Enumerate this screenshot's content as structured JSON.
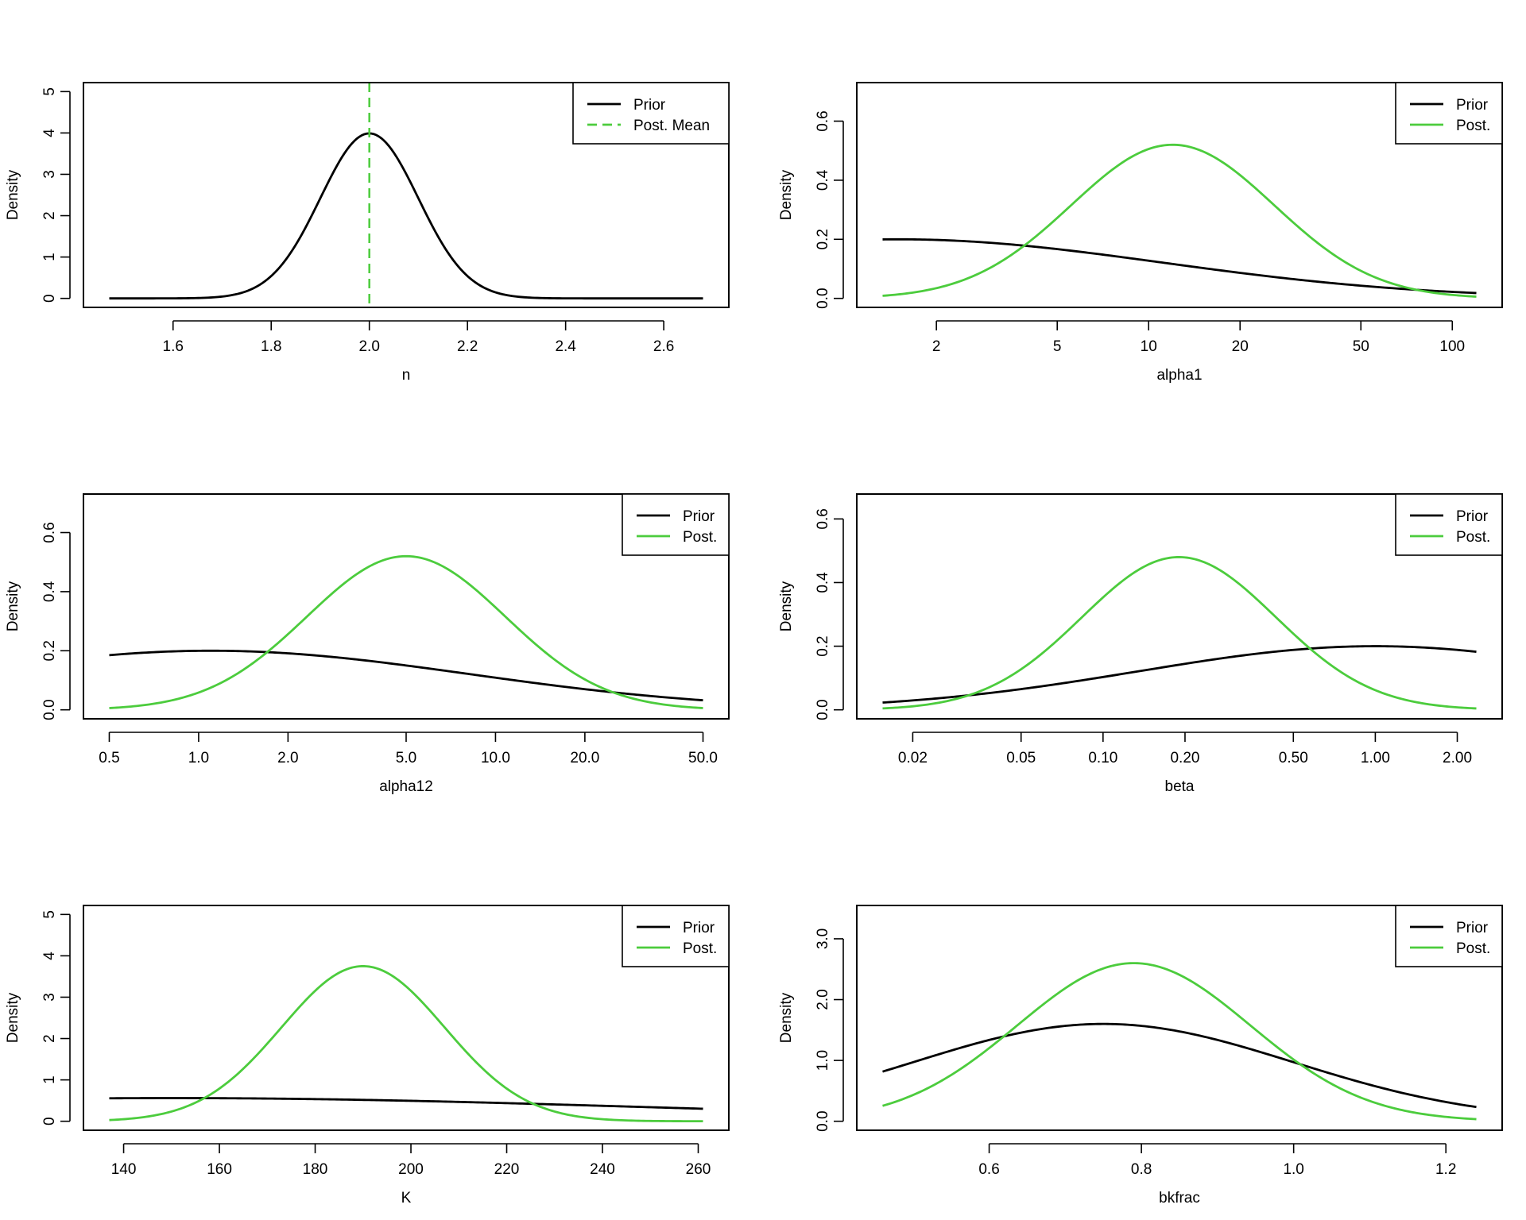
{
  "chart_data": [
    {
      "type": "line",
      "xlabel": "n",
      "ylabel": "Density",
      "xscale": "linear",
      "xlim": [
        1.47,
        2.68
      ],
      "ylim": [
        0,
        5
      ],
      "x_ticks": [
        1.6,
        1.8,
        2.0,
        2.2,
        2.4,
        2.6
      ],
      "x_tick_labels": [
        "1.6",
        "1.8",
        "2.0",
        "2.2",
        "2.4",
        "2.6"
      ],
      "y_ticks": [
        0,
        1,
        2,
        3,
        4,
        5
      ],
      "y_tick_labels": [
        "0",
        "1",
        "2",
        "3",
        "4",
        "5"
      ],
      "legend_position": "top-right",
      "series": [
        {
          "name": "Prior",
          "color": "#000000",
          "dash": "solid",
          "dist": "normal",
          "mean": 2.0,
          "sd": 0.1
        },
        {
          "name": "Post. Mean",
          "color": "#4ccc3d",
          "dash": "dashed",
          "dist": "vline",
          "x": 2.0
        }
      ]
    },
    {
      "type": "line",
      "xlabel": "alpha1",
      "ylabel": "Density",
      "xscale": "log",
      "xlim": [
        1.33,
        120
      ],
      "ylim": [
        0,
        0.7
      ],
      "x_ticks": [
        2,
        5,
        10,
        20,
        50,
        100
      ],
      "x_tick_labels": [
        "2",
        "5",
        "10",
        "20",
        "50",
        "100"
      ],
      "y_ticks": [
        0,
        0.2,
        0.4,
        0.6
      ],
      "y_tick_labels": [
        "0.0",
        "0.2",
        "0.4",
        "0.6"
      ],
      "legend_position": "top-right",
      "series": [
        {
          "name": "Prior",
          "color": "#000000",
          "dash": "solid",
          "dist": "lognormal",
          "peak_x": 1.5,
          "peak_y": 0.2,
          "sigma": 2.0
        },
        {
          "name": "Post.",
          "color": "#4ccc3d",
          "dash": "solid",
          "dist": "lognormal",
          "peak_x": 12,
          "peak_y": 0.52,
          "sigma": 0.77
        }
      ]
    },
    {
      "type": "line",
      "xlabel": "alpha12",
      "ylabel": "Density",
      "xscale": "log",
      "xlim": [
        0.5,
        50
      ],
      "ylim": [
        0,
        0.7
      ],
      "x_ticks": [
        0.5,
        1,
        2,
        5,
        10,
        20,
        50
      ],
      "x_tick_labels": [
        "0.5",
        "1.0",
        "2.0",
        "5.0",
        "10.0",
        "20.0",
        "50.0"
      ],
      "y_ticks": [
        0,
        0.2,
        0.4,
        0.6
      ],
      "y_tick_labels": [
        "0.0",
        "0.2",
        "0.4",
        "0.6"
      ],
      "legend_position": "top-right",
      "series": [
        {
          "name": "Prior",
          "color": "#000000",
          "dash": "solid",
          "dist": "lognormal",
          "peak_x": 1.1,
          "peak_y": 0.2,
          "sigma": 2.0
        },
        {
          "name": "Post.",
          "color": "#4ccc3d",
          "dash": "solid",
          "dist": "lognormal",
          "peak_x": 5.0,
          "peak_y": 0.52,
          "sigma": 0.77
        }
      ]
    },
    {
      "type": "line",
      "xlabel": "beta",
      "ylabel": "Density",
      "xscale": "log",
      "xlim": [
        0.0155,
        2.35
      ],
      "ylim": [
        0,
        0.65
      ],
      "x_ticks": [
        0.02,
        0.05,
        0.1,
        0.2,
        0.5,
        1,
        2
      ],
      "x_tick_labels": [
        "0.02",
        "0.05",
        "0.10",
        "0.20",
        "0.50",
        "1.00",
        "2.00"
      ],
      "y_ticks": [
        0,
        0.2,
        0.4,
        0.6
      ],
      "y_tick_labels": [
        "0.0",
        "0.2",
        "0.4",
        "0.6"
      ],
      "legend_position": "top-right",
      "series": [
        {
          "name": "Prior",
          "color": "#000000",
          "dash": "solid",
          "dist": "lognormal",
          "peak_x": 1.0,
          "peak_y": 0.2,
          "sigma": 2.0
        },
        {
          "name": "Post.",
          "color": "#4ccc3d",
          "dash": "solid",
          "dist": "lognormal",
          "peak_x": 0.19,
          "peak_y": 0.48,
          "sigma": 0.82
        }
      ]
    },
    {
      "type": "line",
      "xlabel": "K",
      "ylabel": "Density",
      "xscale": "linear",
      "xlim": [
        137,
        261
      ],
      "ylim": [
        0,
        5
      ],
      "x_ticks": [
        140,
        160,
        180,
        200,
        220,
        240,
        260
      ],
      "x_tick_labels": [
        "140",
        "160",
        "180",
        "200",
        "220",
        "240",
        "260"
      ],
      "y_ticks": [
        0,
        1,
        2,
        3,
        4,
        5
      ],
      "y_tick_labels": [
        "0",
        "1",
        "2",
        "3",
        "4",
        "5"
      ],
      "legend_position": "top-right",
      "series": [
        {
          "name": "Prior",
          "color": "#000000",
          "dash": "solid",
          "dist": "normal",
          "mean": 150,
          "sd": 100,
          "peak_y": 0.56
        },
        {
          "name": "Post.",
          "color": "#4ccc3d",
          "dash": "solid",
          "dist": "normal",
          "mean": 190,
          "sd": 17,
          "peak_y": 3.75
        }
      ]
    },
    {
      "type": "line",
      "xlabel": "bkfrac",
      "ylabel": "Density",
      "xscale": "linear",
      "xlim": [
        0.46,
        1.24
      ],
      "ylim": [
        0,
        3.4
      ],
      "x_ticks": [
        0.6,
        0.8,
        1.0,
        1.2
      ],
      "x_tick_labels": [
        "0.6",
        "0.8",
        "1.0",
        "1.2"
      ],
      "y_ticks": [
        0,
        1,
        2,
        3
      ],
      "y_tick_labels": [
        "0.0",
        "1.0",
        "2.0",
        "3.0"
      ],
      "legend_position": "top-right",
      "series": [
        {
          "name": "Prior",
          "color": "#000000",
          "dash": "solid",
          "dist": "normal",
          "mean": 0.75,
          "sd": 0.25,
          "peak_y": 1.6
        },
        {
          "name": "Post.",
          "color": "#4ccc3d",
          "dash": "solid",
          "dist": "normal",
          "mean": 0.79,
          "sd": 0.153,
          "peak_y": 2.6
        }
      ]
    }
  ]
}
